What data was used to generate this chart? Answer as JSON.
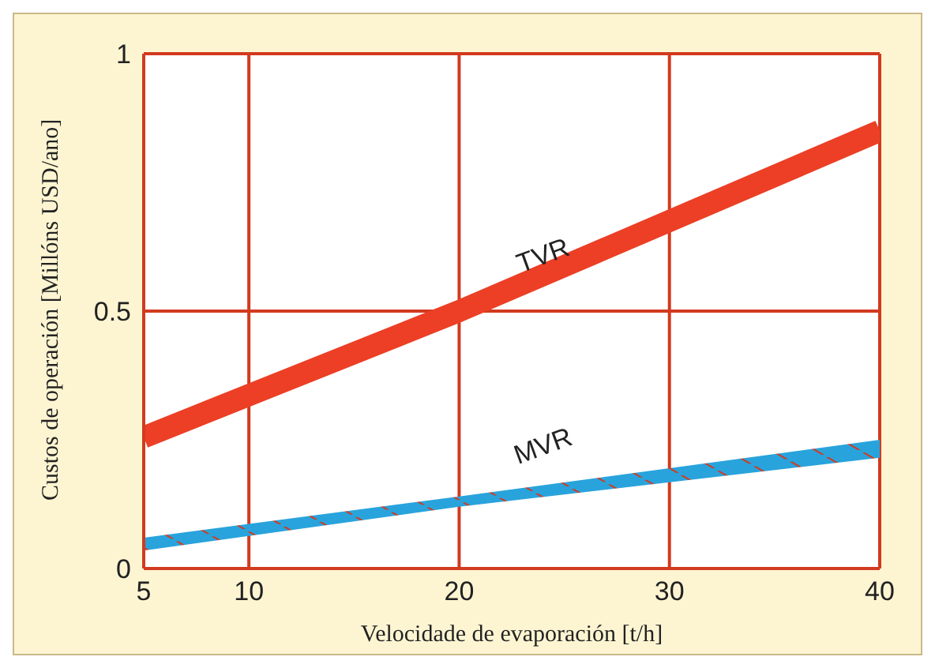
{
  "chart_data": {
    "type": "line",
    "xlabel": "Velocidade de evaporación [t/h]",
    "ylabel": "Custos de operación [Millóns USD/ano]",
    "xlim": [
      5,
      40
    ],
    "xticks": [
      5,
      10,
      20,
      30,
      40
    ],
    "ylim": [
      0,
      1
    ],
    "yticks": [
      0,
      0.5,
      1
    ],
    "grid": true,
    "series": [
      {
        "name": "TVR",
        "color": "#ec3f25",
        "x": [
          5,
          20,
          40
        ],
        "values": [
          0.255,
          0.5,
          0.85
        ]
      },
      {
        "name": "MVR",
        "color": "#29a3dc",
        "x": [
          5,
          20,
          40
        ],
        "values": [
          0.047,
          0.13,
          0.232
        ],
        "lower": [
          0.035,
          0.12,
          0.215
        ],
        "upper": [
          0.06,
          0.14,
          0.25
        ]
      }
    ]
  }
}
